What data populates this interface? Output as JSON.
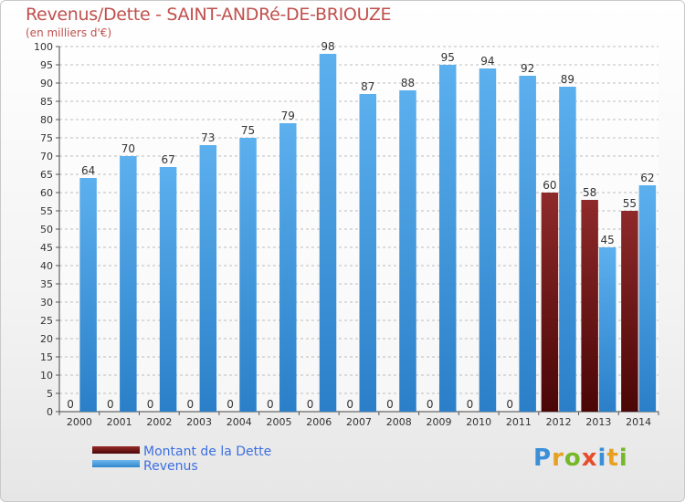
{
  "title": "Revenus/Dette - SAINT-ANDRé-DE-BRIOUZE",
  "subtitle": "(en milliers d'€)",
  "logo": "Proxiti",
  "colors": {
    "dette": "#7a1a1a",
    "revenus": "#4ea3e3",
    "legend_text": "#3d6fe0",
    "title": "#c0504d"
  },
  "legend": [
    {
      "label": "Montant de la Dette",
      "color": "#6b0f0f"
    },
    {
      "label": "Revenus",
      "color": "#4ea3e3"
    }
  ],
  "chart_data": {
    "type": "bar",
    "categories": [
      "2000",
      "2001",
      "2002",
      "2003",
      "2004",
      "2005",
      "2006",
      "2007",
      "2008",
      "2009",
      "2010",
      "2011",
      "2012",
      "2013",
      "2014"
    ],
    "series": [
      {
        "name": "Montant de la Dette",
        "values": [
          0,
          0,
          0,
          0,
          0,
          0,
          0,
          0,
          0,
          0,
          0,
          0,
          60,
          58,
          55
        ]
      },
      {
        "name": "Revenus",
        "values": [
          64,
          70,
          67,
          73,
          75,
          79,
          98,
          87,
          88,
          95,
          94,
          92,
          89,
          45,
          62
        ]
      }
    ],
    "yticks": [
      0,
      5,
      10,
      15,
      20,
      25,
      30,
      35,
      40,
      45,
      50,
      55,
      60,
      65,
      70,
      75,
      80,
      85,
      90,
      95,
      100
    ],
    "ylim": [
      0,
      100
    ],
    "grid": "horizontal dashed",
    "legend_position": "bottom-left"
  }
}
